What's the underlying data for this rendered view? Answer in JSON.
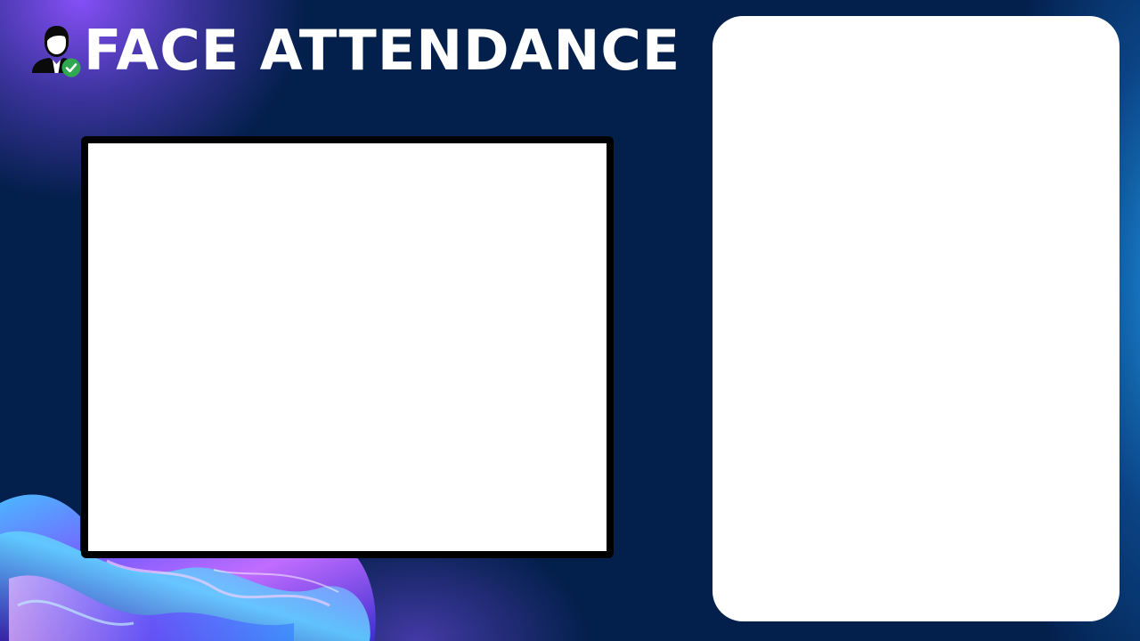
{
  "app": {
    "title": "FACE ATTENDANCE"
  },
  "icons": {
    "logo": "user-verified-icon",
    "badge": "checkmark-icon"
  },
  "colors": {
    "background": "#031f4b",
    "accent_purple": "#8c52ff",
    "accent_blue": "#1e96e6",
    "badge_green": "#2fa84f",
    "title_text": "#ffffff",
    "frame_border": "#000000",
    "panel": "#ffffff"
  }
}
